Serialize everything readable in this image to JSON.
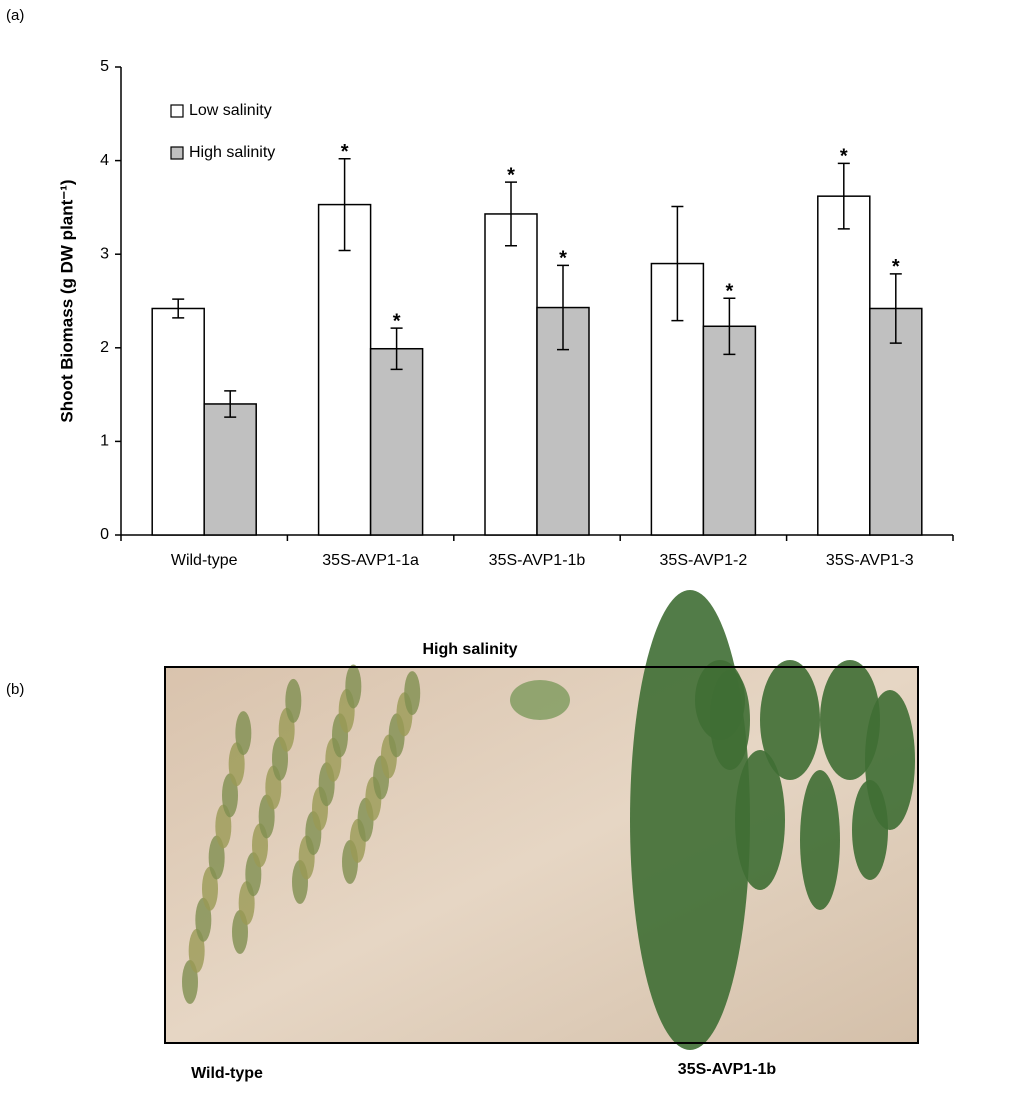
{
  "panel_labels": [
    "(a)",
    "(b)"
  ],
  "chart_data": {
    "type": "bar",
    "y_label": "Shoot Biomass (g DW plant⁻¹)",
    "categories": [
      "Wild-type",
      "35S-AVP1-1a",
      "35S-AVP1-1b",
      "35S-AVP1-2",
      "35S-AVP1-3"
    ],
    "series": [
      {
        "name": "Low salinity",
        "color": "#ffffff",
        "values": [
          2.42,
          3.53,
          3.43,
          2.9,
          3.62
        ],
        "errors": [
          0.1,
          0.49,
          0.34,
          0.61,
          0.35
        ],
        "annotations": [
          null,
          "*",
          "*",
          null,
          "*"
        ]
      },
      {
        "name": "High salinity",
        "color": "#c0c0c0",
        "values": [
          1.4,
          1.99,
          2.43,
          2.23,
          2.42
        ],
        "errors": [
          0.14,
          0.22,
          0.45,
          0.3,
          0.37
        ],
        "annotations": [
          null,
          "*",
          "*",
          "*",
          "*"
        ]
      }
    ],
    "ylim": [
      0,
      5
    ],
    "yticks": [
      0,
      1,
      2,
      3,
      4,
      5
    ],
    "grid": false,
    "legend": "upper left"
  },
  "photo": {
    "title": "High salinity",
    "left_label": "Wild-type",
    "right_label": "35S-AVP1-1b"
  }
}
